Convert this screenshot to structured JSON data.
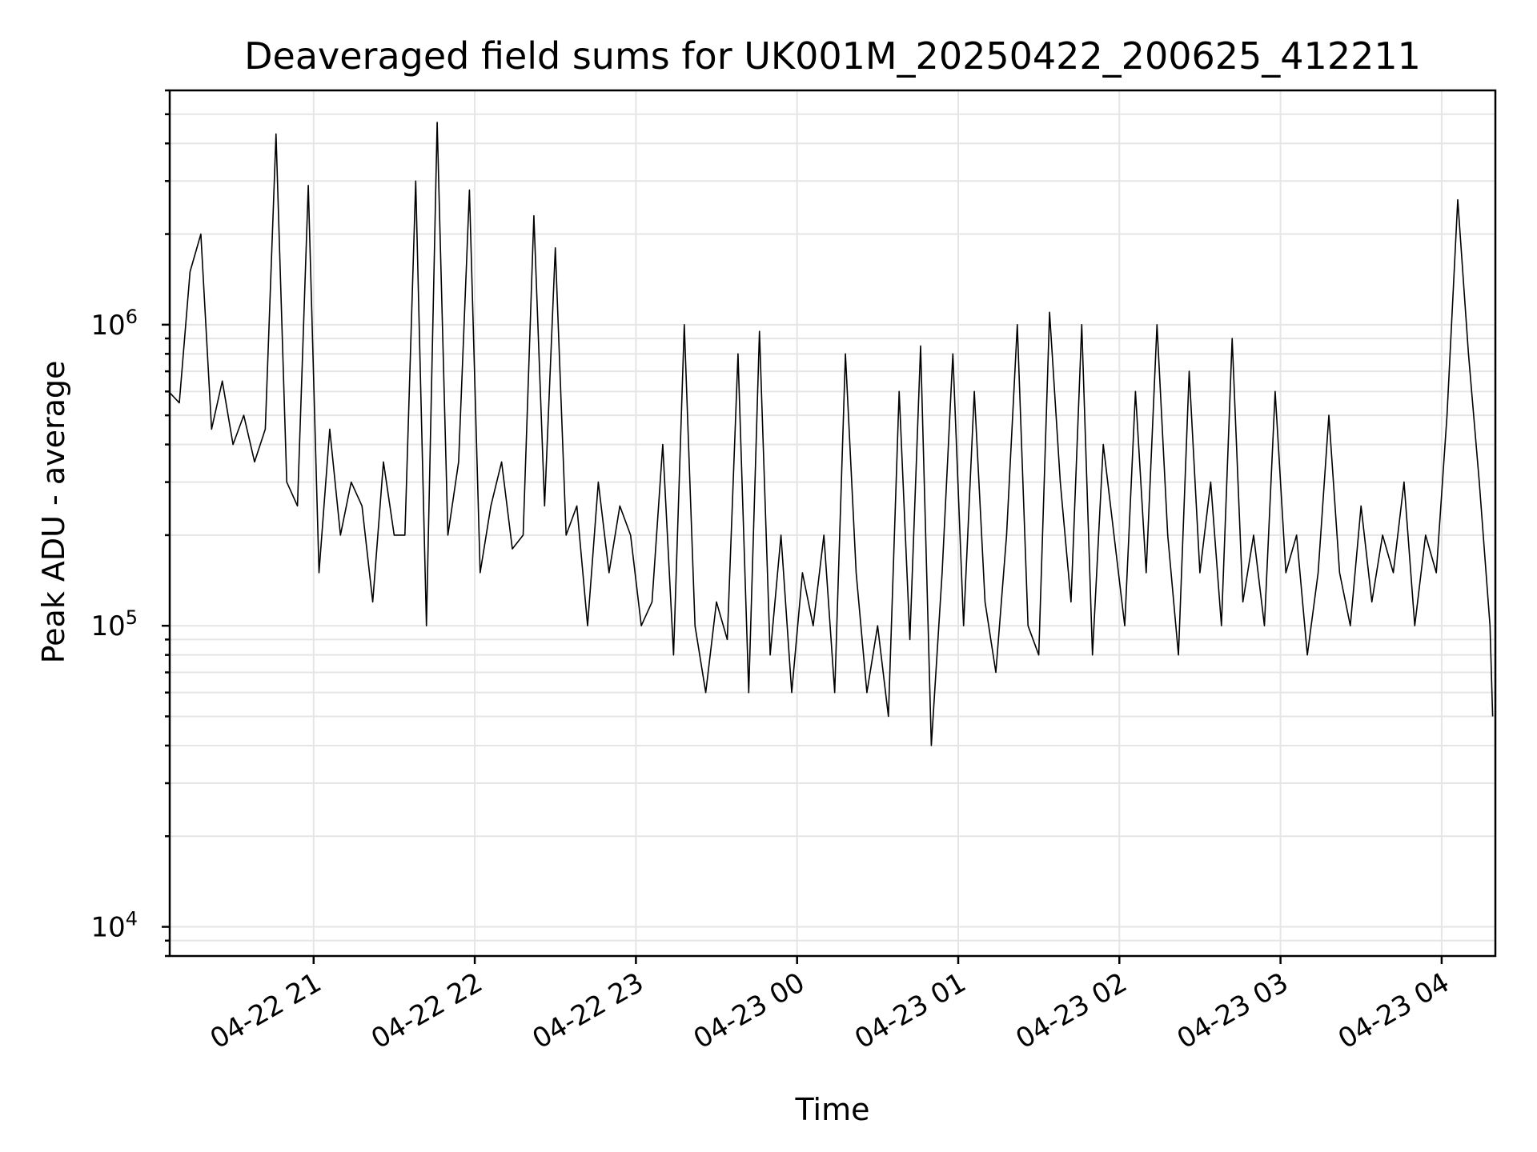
{
  "chart_data": {
    "type": "line",
    "title": "Deaveraged field sums for UK001M_20250422_200625_412211",
    "xlabel": "Time",
    "ylabel": "Peak ADU - average",
    "yscale": "log",
    "ylim": [
      8000,
      6000000
    ],
    "xlim": [
      "2025-04-22 20:06:25",
      "2025-04-23 04:20:00"
    ],
    "x_ticks": [
      {
        "t": "2025-04-22 21:00",
        "label": "04-22 21"
      },
      {
        "t": "2025-04-22 22:00",
        "label": "04-22 22"
      },
      {
        "t": "2025-04-22 23:00",
        "label": "04-22 23"
      },
      {
        "t": "2025-04-23 00:00",
        "label": "04-23 00"
      },
      {
        "t": "2025-04-23 01:00",
        "label": "04-23 01"
      },
      {
        "t": "2025-04-23 02:00",
        "label": "04-23 02"
      },
      {
        "t": "2025-04-23 03:00",
        "label": "04-23 03"
      },
      {
        "t": "2025-04-23 04:00",
        "label": "04-23 04"
      }
    ],
    "y_ticks": [
      {
        "value": 10000,
        "base": "10",
        "exp": "4"
      },
      {
        "value": 100000,
        "base": "10",
        "exp": "5"
      },
      {
        "value": 1000000,
        "base": "10",
        "exp": "6"
      }
    ],
    "grid": true,
    "series": [
      {
        "color": "#000000",
        "x": [
          "2025-04-22 20:06",
          "2025-04-22 20:10",
          "2025-04-22 20:14",
          "2025-04-22 20:18",
          "2025-04-22 20:22",
          "2025-04-22 20:26",
          "2025-04-22 20:30",
          "2025-04-22 20:34",
          "2025-04-22 20:38",
          "2025-04-22 20:42",
          "2025-04-22 20:46",
          "2025-04-22 20:50",
          "2025-04-22 20:54",
          "2025-04-22 20:58",
          "2025-04-22 21:02",
          "2025-04-22 21:06",
          "2025-04-22 21:10",
          "2025-04-22 21:14",
          "2025-04-22 21:18",
          "2025-04-22 21:22",
          "2025-04-22 21:26",
          "2025-04-22 21:30",
          "2025-04-22 21:34",
          "2025-04-22 21:38",
          "2025-04-22 21:42",
          "2025-04-22 21:46",
          "2025-04-22 21:50",
          "2025-04-22 21:54",
          "2025-04-22 21:58",
          "2025-04-22 22:02",
          "2025-04-22 22:06",
          "2025-04-22 22:10",
          "2025-04-22 22:14",
          "2025-04-22 22:18",
          "2025-04-22 22:22",
          "2025-04-22 22:26",
          "2025-04-22 22:30",
          "2025-04-22 22:34",
          "2025-04-22 22:38",
          "2025-04-22 22:42",
          "2025-04-22 22:46",
          "2025-04-22 22:50",
          "2025-04-22 22:54",
          "2025-04-22 22:58",
          "2025-04-22 23:02",
          "2025-04-22 23:06",
          "2025-04-22 23:10",
          "2025-04-22 23:14",
          "2025-04-22 23:18",
          "2025-04-22 23:22",
          "2025-04-22 23:26",
          "2025-04-22 23:30",
          "2025-04-22 23:34",
          "2025-04-22 23:38",
          "2025-04-22 23:42",
          "2025-04-22 23:46",
          "2025-04-22 23:50",
          "2025-04-22 23:54",
          "2025-04-22 23:58",
          "2025-04-23 00:02",
          "2025-04-23 00:06",
          "2025-04-23 00:10",
          "2025-04-23 00:14",
          "2025-04-23 00:18",
          "2025-04-23 00:22",
          "2025-04-23 00:26",
          "2025-04-23 00:30",
          "2025-04-23 00:34",
          "2025-04-23 00:38",
          "2025-04-23 00:42",
          "2025-04-23 00:46",
          "2025-04-23 00:50",
          "2025-04-23 00:54",
          "2025-04-23 00:58",
          "2025-04-23 01:02",
          "2025-04-23 01:06",
          "2025-04-23 01:10",
          "2025-04-23 01:14",
          "2025-04-23 01:18",
          "2025-04-23 01:22",
          "2025-04-23 01:26",
          "2025-04-23 01:30",
          "2025-04-23 01:34",
          "2025-04-23 01:38",
          "2025-04-23 01:42",
          "2025-04-23 01:46",
          "2025-04-23 01:50",
          "2025-04-23 01:54",
          "2025-04-23 01:58",
          "2025-04-23 02:02",
          "2025-04-23 02:06",
          "2025-04-23 02:10",
          "2025-04-23 02:14",
          "2025-04-23 02:18",
          "2025-04-23 02:22",
          "2025-04-23 02:26",
          "2025-04-23 02:30",
          "2025-04-23 02:34",
          "2025-04-23 02:38",
          "2025-04-23 02:42",
          "2025-04-23 02:46",
          "2025-04-23 02:50",
          "2025-04-23 02:54",
          "2025-04-23 02:58",
          "2025-04-23 03:02",
          "2025-04-23 03:06",
          "2025-04-23 03:10",
          "2025-04-23 03:14",
          "2025-04-23 03:18",
          "2025-04-23 03:22",
          "2025-04-23 03:26",
          "2025-04-23 03:30",
          "2025-04-23 03:34",
          "2025-04-23 03:38",
          "2025-04-23 03:42",
          "2025-04-23 03:46",
          "2025-04-23 03:50",
          "2025-04-23 03:54",
          "2025-04-23 03:58",
          "2025-04-23 04:02",
          "2025-04-23 04:06",
          "2025-04-23 04:10",
          "2025-04-23 04:14",
          "2025-04-23 04:18",
          "2025-04-23 04:19"
        ],
        "y": [
          600000,
          550000,
          1500000,
          2000000,
          450000,
          650000,
          400000,
          500000,
          350000,
          450000,
          4300000,
          300000,
          250000,
          2900000,
          150000,
          450000,
          200000,
          300000,
          250000,
          120000,
          350000,
          200000,
          200000,
          3000000,
          100000,
          4700000,
          200000,
          350000,
          2800000,
          150000,
          250000,
          350000,
          180000,
          200000,
          2300000,
          250000,
          1800000,
          200000,
          250000,
          100000,
          300000,
          150000,
          250000,
          200000,
          100000,
          120000,
          400000,
          80000,
          1000000,
          100000,
          60000,
          120000,
          90000,
          800000,
          60000,
          950000,
          80000,
          200000,
          60000,
          150000,
          100000,
          200000,
          60000,
          800000,
          150000,
          60000,
          100000,
          50000,
          600000,
          90000,
          850000,
          40000,
          150000,
          800000,
          100000,
          600000,
          120000,
          70000,
          200000,
          1000000,
          100000,
          80000,
          1100000,
          300000,
          120000,
          1000000,
          80000,
          400000,
          200000,
          100000,
          600000,
          150000,
          1000000,
          200000,
          80000,
          700000,
          150000,
          300000,
          100000,
          900000,
          120000,
          200000,
          100000,
          600000,
          150000,
          200000,
          80000,
          150000,
          500000,
          150000,
          100000,
          250000,
          120000,
          200000,
          150000,
          300000,
          100000,
          200000,
          150000,
          500000,
          2600000,
          800000,
          300000,
          100000,
          50000
        ]
      }
    ]
  }
}
